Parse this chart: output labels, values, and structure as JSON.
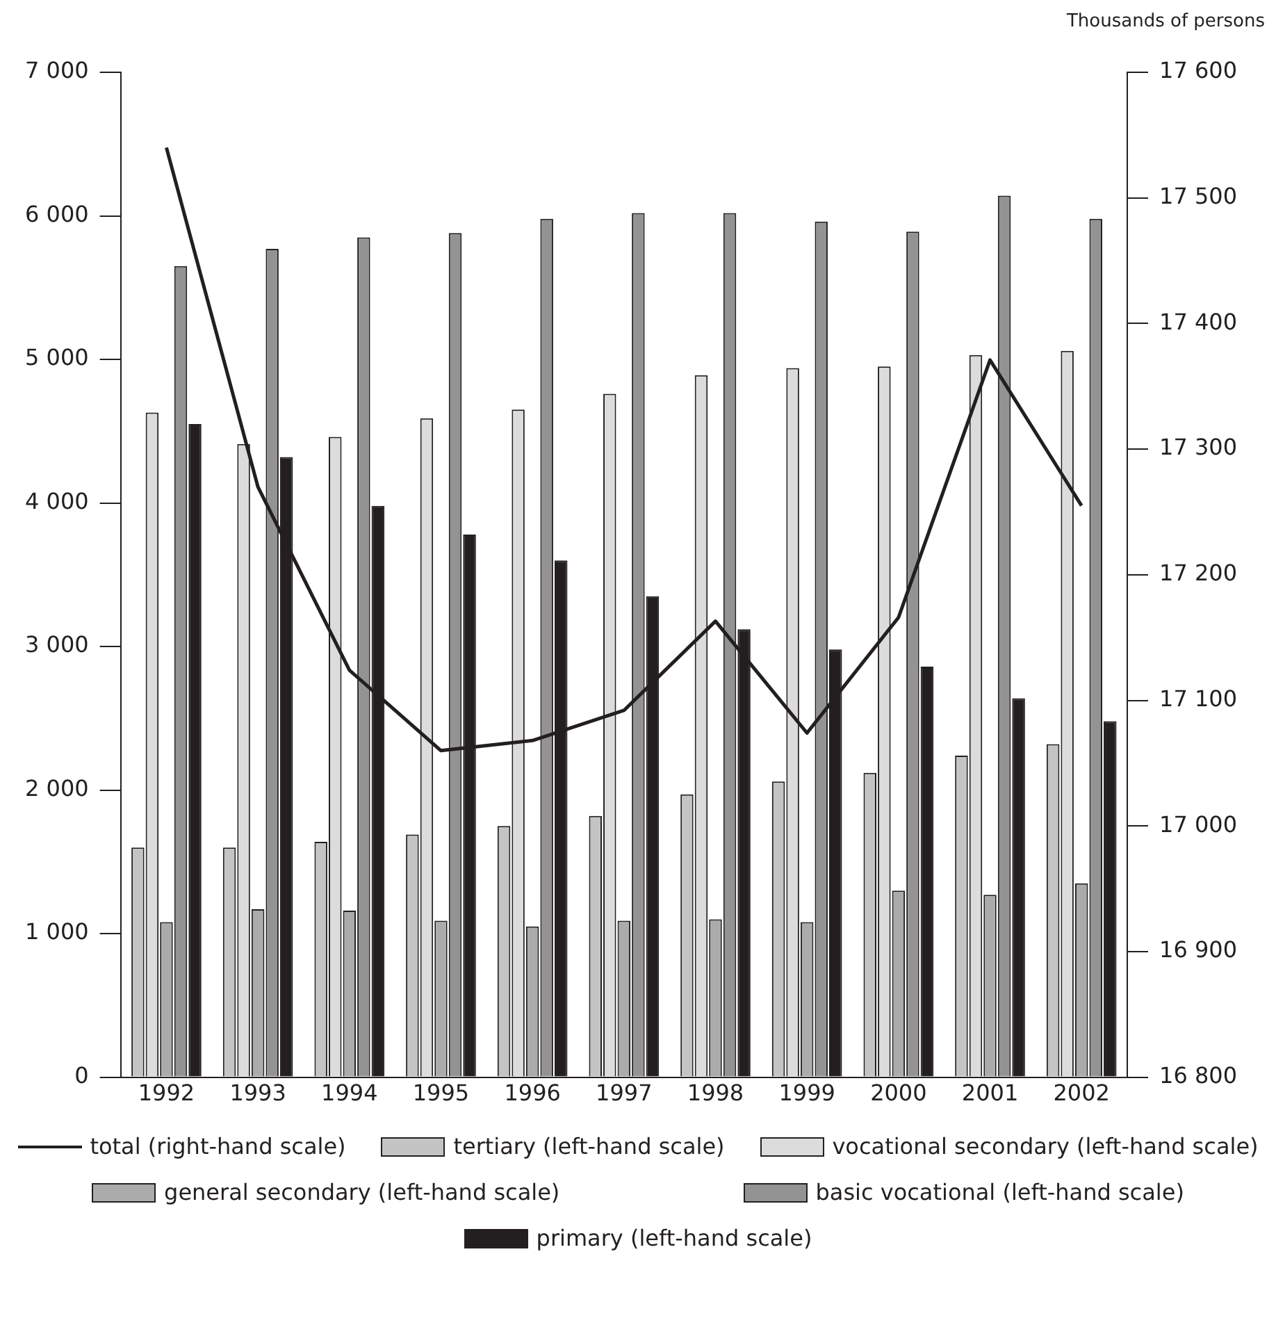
{
  "chart_data": {
    "type": "bar",
    "y2label": "Thousands of persons",
    "categories": [
      "1992",
      "1993",
      "1994",
      "1995",
      "1996",
      "1997",
      "1998",
      "1999",
      "2000",
      "2001",
      "2002"
    ],
    "series": [
      {
        "name": "total (right-hand scale)",
        "type": "line",
        "axis": "y2",
        "color": "#231f20",
        "values": [
          17540,
          17270,
          17124,
          17060,
          17068,
          17092,
          17163,
          17074,
          17166,
          17371,
          17255
        ]
      },
      {
        "name": "tertiary (left-hand scale)",
        "color": "#c4c4c4",
        "values": [
          1600,
          1600,
          1640,
          1690,
          1750,
          1820,
          1970,
          2060,
          2120,
          2240,
          2320
        ]
      },
      {
        "name": "vocational secondary (left-hand scale)",
        "color": "#dcdcdc",
        "values": [
          4630,
          4410,
          4460,
          4590,
          4650,
          4760,
          4890,
          4940,
          4950,
          5030,
          5060
        ]
      },
      {
        "name": "general secondary (left-hand scale)",
        "color": "#ababab",
        "values": [
          1080,
          1170,
          1160,
          1090,
          1050,
          1090,
          1100,
          1080,
          1300,
          1270,
          1350
        ]
      },
      {
        "name": "basic vocational (left-hand scale)",
        "color": "#939393",
        "values": [
          5650,
          5770,
          5850,
          5880,
          5980,
          6020,
          6020,
          5960,
          5890,
          6140,
          5980
        ]
      },
      {
        "name": "primary (left-hand scale)",
        "color": "#231f20",
        "values": [
          4550,
          4320,
          3980,
          3780,
          3600,
          3350,
          3120,
          2980,
          2860,
          2640,
          2480
        ]
      }
    ],
    "ylim": [
      0,
      7000
    ],
    "yticks": [
      {
        "value": 0,
        "label": "0"
      },
      {
        "value": 1000,
        "label": "1 000"
      },
      {
        "value": 2000,
        "label": "2 000"
      },
      {
        "value": 3000,
        "label": "3 000"
      },
      {
        "value": 4000,
        "label": "4 000"
      },
      {
        "value": 5000,
        "label": "5 000"
      },
      {
        "value": 6000,
        "label": "6 000"
      },
      {
        "value": 7000,
        "label": "7 000"
      }
    ],
    "y2lim": [
      16800,
      17600
    ],
    "y2ticks": [
      {
        "value": 16800,
        "label": "16 800"
      },
      {
        "value": 16900,
        "label": "16 900"
      },
      {
        "value": 17000,
        "label": "17 000"
      },
      {
        "value": 17100,
        "label": "17 100"
      },
      {
        "value": 17200,
        "label": "17 200"
      },
      {
        "value": 17300,
        "label": "17 300"
      },
      {
        "value": 17400,
        "label": "17 400"
      },
      {
        "value": 17500,
        "label": "17 500"
      },
      {
        "value": 17600,
        "label": "17 600"
      }
    ],
    "grid": false,
    "legend": "bottom",
    "marker": "none",
    "line_style": "solid"
  }
}
